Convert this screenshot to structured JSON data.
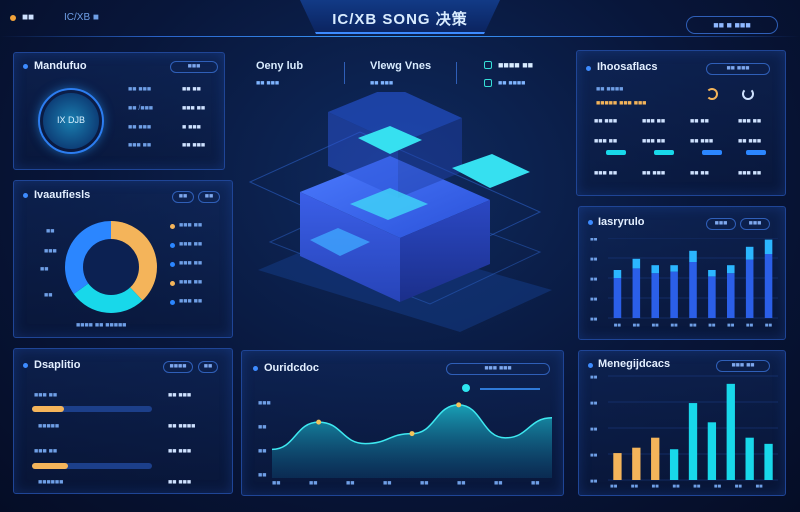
{
  "header": {
    "title": "IC/XB SONG 决策",
    "brand": "■■",
    "brand_sub": "IC/XB ■",
    "right_button": "■■ ■ ■■■"
  },
  "panel_tl": {
    "title": "Mandufuo",
    "chip": "■■■",
    "ring_label": "IX DJB",
    "rows": [
      {
        "label": "■■ ■■■",
        "value": "■■ ■■"
      },
      {
        "label": "■■ /■■■",
        "value": "■■■ ■■"
      },
      {
        "label": "■■ ■■■",
        "value": "■ ■■■"
      },
      {
        "label": "■■■ ■■",
        "value": "■■ ■■■"
      }
    ]
  },
  "panel_ml": {
    "title": "Ivaaufiesls",
    "chips": [
      "■■",
      "■■"
    ],
    "left_labels": [
      "■■",
      "■■■",
      "■■",
      "■■"
    ],
    "legend": [
      {
        "label": "■■■ ■■",
        "color": "#f4b45a"
      },
      {
        "label": "■■■ ■■",
        "color": "#2b86ff"
      },
      {
        "label": "■■■ ■■",
        "color": "#2b86ff"
      },
      {
        "label": "■■■ ■■",
        "color": "#f4b45a"
      },
      {
        "label": "■■■ ■■",
        "color": "#2b86ff"
      }
    ],
    "footer": "■■■■ ■■ ■■■■■",
    "colors": {
      "orange": "#f4b45a",
      "cyan": "#18d8ea",
      "blue": "#2b86ff"
    }
  },
  "panel_bl": {
    "title": "Dsaplitio",
    "chips": [
      "■■■■",
      "■■"
    ],
    "rows": [
      {
        "label": "■■■ ■■",
        "value": "■■ ■■■",
        "fill_pct": 0.27
      },
      {
        "label": "■■■■■",
        "value": "■■ ■■■■"
      },
      {
        "label": "■■■ ■■",
        "value": "■■ ■■■",
        "fill_pct": 0.3
      },
      {
        "label": "■■■■■■",
        "value": "■■ ■■■"
      }
    ]
  },
  "center_top": {
    "items": [
      {
        "title": "Oeny lub",
        "value": "■■ ■■■"
      },
      {
        "title": "Vlewg Vnes",
        "value": "■■ ■■■"
      },
      {
        "title": "■■■■ ■■",
        "value": "■■ ■■■■"
      }
    ]
  },
  "panel_center_bottom": {
    "title": "Ouridcdoc",
    "legend_chip": "■■■ ■■■",
    "y_labels": [
      "■■■",
      "■■",
      "■■",
      "■■"
    ],
    "x_labels": [
      "■■",
      "■■",
      "■■",
      "■■",
      "■■",
      "■■",
      "■■",
      "■■"
    ]
  },
  "panel_tr": {
    "title": "Ihoosaflacs",
    "chip": "■■ ■■■",
    "row1_label": "■■ ■■■■",
    "row2_label": "■■■■■ ■■■ ■■■",
    "grid_values": [
      [
        "■■ ■■■",
        "■■■ ■■",
        "■■ ■■",
        "■■■ ■■"
      ],
      [
        "■■■ ■■",
        "■■■ ■■",
        "■■ ■■■",
        "■■ ■■■"
      ],
      [
        "■■■ ■■",
        "■■ ■■■",
        "■■ ■■",
        "■■■ ■■"
      ]
    ]
  },
  "panel_mr": {
    "title": "Iasryrulo",
    "chips": [
      "■■■",
      "■■■"
    ],
    "y_labels": [
      "■■",
      "■■",
      "■■",
      "■■",
      "■■"
    ],
    "x_labels": [
      "■■",
      "■■",
      "■■",
      "■■",
      "■■",
      "■■",
      "■■",
      "■■",
      "■■"
    ]
  },
  "panel_br": {
    "title": "Menegijdcacs",
    "chip": "■■■ ■■",
    "y_labels": [
      "■■",
      "■■",
      "■■",
      "■■",
      "■■"
    ],
    "x_labels": [
      "■■",
      "■■",
      "■■",
      "■■",
      "■■",
      "■■",
      "■■",
      "■■"
    ]
  },
  "chart_data": [
    {
      "type": "pie",
      "values": [
        38,
        27,
        35
      ],
      "colors": [
        "#f4b45a",
        "#18d8ea",
        "#2b86ff"
      ]
    },
    {
      "type": "area",
      "values": [
        40,
        78,
        48,
        62,
        102,
        56,
        84
      ],
      "ylim": [
        0,
        120
      ]
    },
    {
      "type": "bar",
      "series": [
        {
          "values": [
            50,
            62,
            56,
            58,
            70,
            52,
            56,
            73,
            80
          ]
        },
        {
          "values": [
            10,
            12,
            10,
            8,
            14,
            8,
            10,
            16,
            18
          ]
        }
      ],
      "ylim": [
        0,
        100
      ]
    },
    {
      "type": "bar",
      "values": [
        35,
        42,
        55,
        40,
        100,
        75,
        125,
        55,
        47
      ],
      "colors": [
        "#f4b45a",
        "#f4b45a",
        "#f4b45a",
        "#18d8ea",
        "#18d8ea",
        "#18d8ea",
        "#18d8ea",
        "#18d8ea",
        "#18d8ea"
      ],
      "ylim": [
        0,
        130
      ]
    }
  ]
}
